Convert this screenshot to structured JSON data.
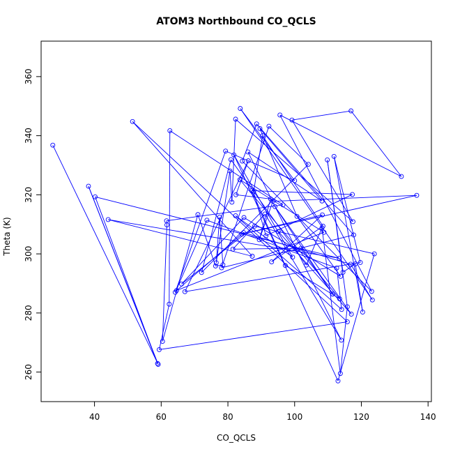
{
  "chart_data": {
    "type": "line",
    "title": "ATOM3 Northbound CO_QCLS",
    "xlabel": "CO_QCLS",
    "ylabel": "Theta (K)",
    "xlim": [
      24,
      141
    ],
    "ylim": [
      250,
      372
    ],
    "x_ticks": [
      40,
      60,
      80,
      100,
      120,
      140
    ],
    "y_ticks": [
      260,
      280,
      300,
      320,
      340,
      360
    ],
    "grid": false,
    "legend": "none",
    "series": [
      {
        "color": "#0000ff",
        "marker": "open-circle",
        "points": [
          [
            27.5,
            336.8
          ],
          [
            59.1,
            262.6
          ],
          [
            38.2,
            322.9
          ],
          [
            58.9,
            262.9
          ],
          [
            40.2,
            319.3
          ],
          [
            113.4,
            298.5
          ],
          [
            44.1,
            311.6
          ],
          [
            87.3,
            299.2
          ],
          [
            51.4,
            344.8
          ],
          [
            115.8,
            277.0
          ],
          [
            59.4,
            267.6
          ],
          [
            62.4,
            283.0
          ],
          [
            62.6,
            341.7
          ],
          [
            96.5,
            316.6
          ],
          [
            61.6,
            311.2
          ],
          [
            61.7,
            309.8
          ],
          [
            60.4,
            270.4
          ],
          [
            71.0,
            313.3
          ],
          [
            76.3,
            295.9
          ],
          [
            78.5,
            296.3
          ],
          [
            77.5,
            312.4
          ],
          [
            76.5,
            297.0
          ],
          [
            80.6,
            328.1
          ],
          [
            81.2,
            317.5
          ],
          [
            82.3,
            345.6
          ],
          [
            117.5,
            310.9
          ],
          [
            99.2,
            345.3
          ],
          [
            116.9,
            348.4
          ],
          [
            132.0,
            326.2
          ],
          [
            95.6,
            347.0
          ],
          [
            123.1,
            287.3
          ],
          [
            84.3,
            331.4
          ],
          [
            88.6,
            344.0
          ],
          [
            117.7,
            306.4
          ],
          [
            78.1,
            295.3
          ],
          [
            92.3,
            343.2
          ],
          [
            104.1,
            330.3
          ],
          [
            72.1,
            293.7
          ],
          [
            80.9,
            331.9
          ],
          [
            103.5,
            296.2
          ],
          [
            108.2,
            308.8
          ],
          [
            113.7,
            259.5
          ],
          [
            115.8,
            282.1
          ],
          [
            109.8,
            331.8
          ],
          [
            114.5,
            293.8
          ],
          [
            118.2,
            296.6
          ],
          [
            120.4,
            280.3
          ],
          [
            111.8,
            333.0
          ],
          [
            119.7,
            297.1
          ],
          [
            67.1,
            287.2
          ],
          [
            86.1,
            331.5
          ],
          [
            82.4,
            320.0
          ],
          [
            92.8,
            318.6
          ],
          [
            89.4,
            304.8
          ],
          [
            93.5,
            317.8
          ],
          [
            136.6,
            319.8
          ],
          [
            84.2,
            306.7
          ],
          [
            108.3,
            313.2
          ],
          [
            93.1,
            297.3
          ],
          [
            108.5,
            309.4
          ],
          [
            90.4,
            340.0
          ],
          [
            87.7,
            321.0
          ],
          [
            91.4,
            306.1
          ],
          [
            117.3,
            320.1
          ],
          [
            87.1,
            321.4
          ],
          [
            97.2,
            296.1
          ],
          [
            113.5,
            284.8
          ],
          [
            83.6,
            325.1
          ],
          [
            108.8,
            307.3
          ],
          [
            64.6,
            287.6
          ],
          [
            84.7,
            307.2
          ],
          [
            116.8,
            296.5
          ],
          [
            123.3,
            284.4
          ],
          [
            83.7,
            349.2
          ],
          [
            100.0,
            324.8
          ],
          [
            79.3,
            334.8
          ],
          [
            64.2,
            287.0
          ],
          [
            73.7,
            311.4
          ],
          [
            112.6,
            295.2
          ],
          [
            114.1,
            281.2
          ],
          [
            82.3,
            312.9
          ],
          [
            99.4,
            298.9
          ],
          [
            81.8,
            333.5
          ],
          [
            113.0,
            257.0
          ],
          [
            123.9,
            300.0
          ],
          [
            88.0,
            309.4
          ],
          [
            66.1,
            289.8
          ],
          [
            84.8,
            312.3
          ],
          [
            113.8,
            292.4
          ],
          [
            100.7,
            312.7
          ],
          [
            89.6,
            342.4
          ],
          [
            108.2,
            317.9
          ],
          [
            86.0,
            334.5
          ],
          [
            114.0,
            270.8
          ],
          [
            91.1,
            313.5
          ],
          [
            81.5,
            301.6
          ],
          [
            101.9,
            301.9
          ],
          [
            111.4,
            286.4
          ],
          [
            94.1,
            316.0
          ],
          [
            117.0,
            279.6
          ],
          [
            95.1,
            307.6
          ]
        ]
      }
    ]
  }
}
